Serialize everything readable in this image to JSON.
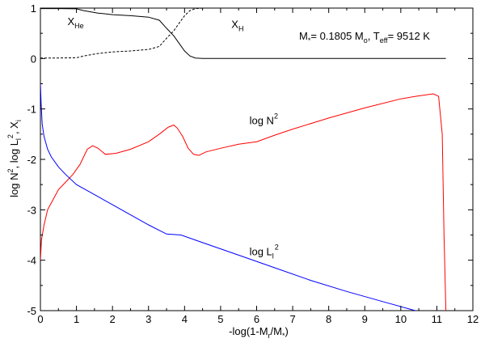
{
  "chart_data": {
    "type": "line",
    "xlabel": "-log(1-M_r/M_*)",
    "ylabel": "log N^2, log L_l^2, X_i",
    "xlim": [
      0,
      12
    ],
    "ylim": [
      -5,
      1
    ],
    "xticks": [
      0,
      1,
      2,
      3,
      4,
      5,
      6,
      7,
      8,
      9,
      10,
      11,
      12
    ],
    "yticks": [
      1,
      0,
      -1,
      -2,
      -3,
      -4,
      -5
    ],
    "grid": false,
    "annotation": "M_* = 0.1805 M_o, T_eff = 9512 K",
    "series": [
      {
        "name": "X_He",
        "color": "#000000",
        "style": "solid",
        "x": [
          0,
          0.5,
          1.0,
          1.2,
          1.6,
          2.0,
          2.5,
          3.0,
          3.3,
          3.5,
          3.7,
          3.85,
          4.0,
          4.15,
          4.3,
          4.5,
          6,
          8,
          10,
          11.25
        ],
        "y": [
          0.99,
          0.99,
          0.985,
          0.95,
          0.9,
          0.87,
          0.85,
          0.82,
          0.76,
          0.6,
          0.45,
          0.3,
          0.15,
          0.05,
          0.01,
          0.0,
          0.0,
          0.0,
          0.0,
          0.0
        ]
      },
      {
        "name": "X_H",
        "color": "#000000",
        "style": "dashed",
        "x": [
          0,
          0.5,
          1.0,
          1.2,
          1.6,
          2.0,
          2.5,
          3.0,
          3.3,
          3.5,
          3.7,
          3.85,
          4.0,
          4.15,
          4.3,
          4.5,
          6,
          8,
          10,
          11.25
        ],
        "y": [
          0.01,
          0.01,
          0.015,
          0.05,
          0.1,
          0.13,
          0.15,
          0.18,
          0.24,
          0.4,
          0.55,
          0.7,
          0.85,
          0.95,
          0.99,
          1.0,
          1.0,
          1.0,
          1.0,
          1.0
        ]
      },
      {
        "name": "log N^2",
        "color": "#ff0000",
        "style": "solid",
        "x": [
          0,
          0.03,
          0.1,
          0.2,
          0.35,
          0.5,
          0.7,
          0.9,
          1.1,
          1.3,
          1.45,
          1.6,
          1.8,
          2.1,
          2.5,
          3.0,
          3.3,
          3.55,
          3.7,
          3.8,
          3.95,
          4.1,
          4.25,
          4.4,
          4.6,
          5.0,
          5.5,
          6.0,
          6.5,
          7.0,
          8.0,
          9.0,
          10.0,
          10.5,
          10.9,
          11.05,
          11.15,
          11.2,
          11.25
        ],
        "y": [
          -4.0,
          -3.6,
          -3.3,
          -3.0,
          -2.8,
          -2.6,
          -2.45,
          -2.3,
          -2.1,
          -1.8,
          -1.73,
          -1.78,
          -1.9,
          -1.88,
          -1.8,
          -1.65,
          -1.5,
          -1.36,
          -1.32,
          -1.38,
          -1.55,
          -1.78,
          -1.9,
          -1.92,
          -1.85,
          -1.78,
          -1.7,
          -1.65,
          -1.52,
          -1.4,
          -1.18,
          -0.98,
          -0.8,
          -0.74,
          -0.7,
          -0.75,
          -1.5,
          -3.5,
          -5.0
        ]
      },
      {
        "name": "log L_l^2",
        "color": "#0000ff",
        "style": "solid",
        "x": [
          0,
          0.02,
          0.05,
          0.1,
          0.2,
          0.3,
          0.5,
          0.7,
          1.0,
          1.5,
          2.0,
          2.5,
          3.0,
          3.5,
          3.9,
          4.5,
          5.5,
          6.5,
          7.5,
          8.5,
          9.5,
          10.5
        ],
        "y": [
          -0.5,
          -0.9,
          -1.3,
          -1.55,
          -1.8,
          -1.95,
          -2.15,
          -2.3,
          -2.5,
          -2.7,
          -2.9,
          -3.1,
          -3.3,
          -3.48,
          -3.5,
          -3.65,
          -3.9,
          -4.15,
          -4.4,
          -4.62,
          -4.82,
          -5.02
        ]
      }
    ],
    "labels": [
      {
        "text": "X",
        "sub": "He",
        "x": 0.75,
        "y": 0.66
      },
      {
        "text": "X",
        "sub": "H",
        "x": 5.3,
        "y": 0.61
      },
      {
        "text": "log N",
        "sup": "2",
        "x": 5.8,
        "y": -1.3
      },
      {
        "text": "log L",
        "sub": "l",
        "sup": "2",
        "x": 5.8,
        "y": -3.9
      }
    ]
  }
}
